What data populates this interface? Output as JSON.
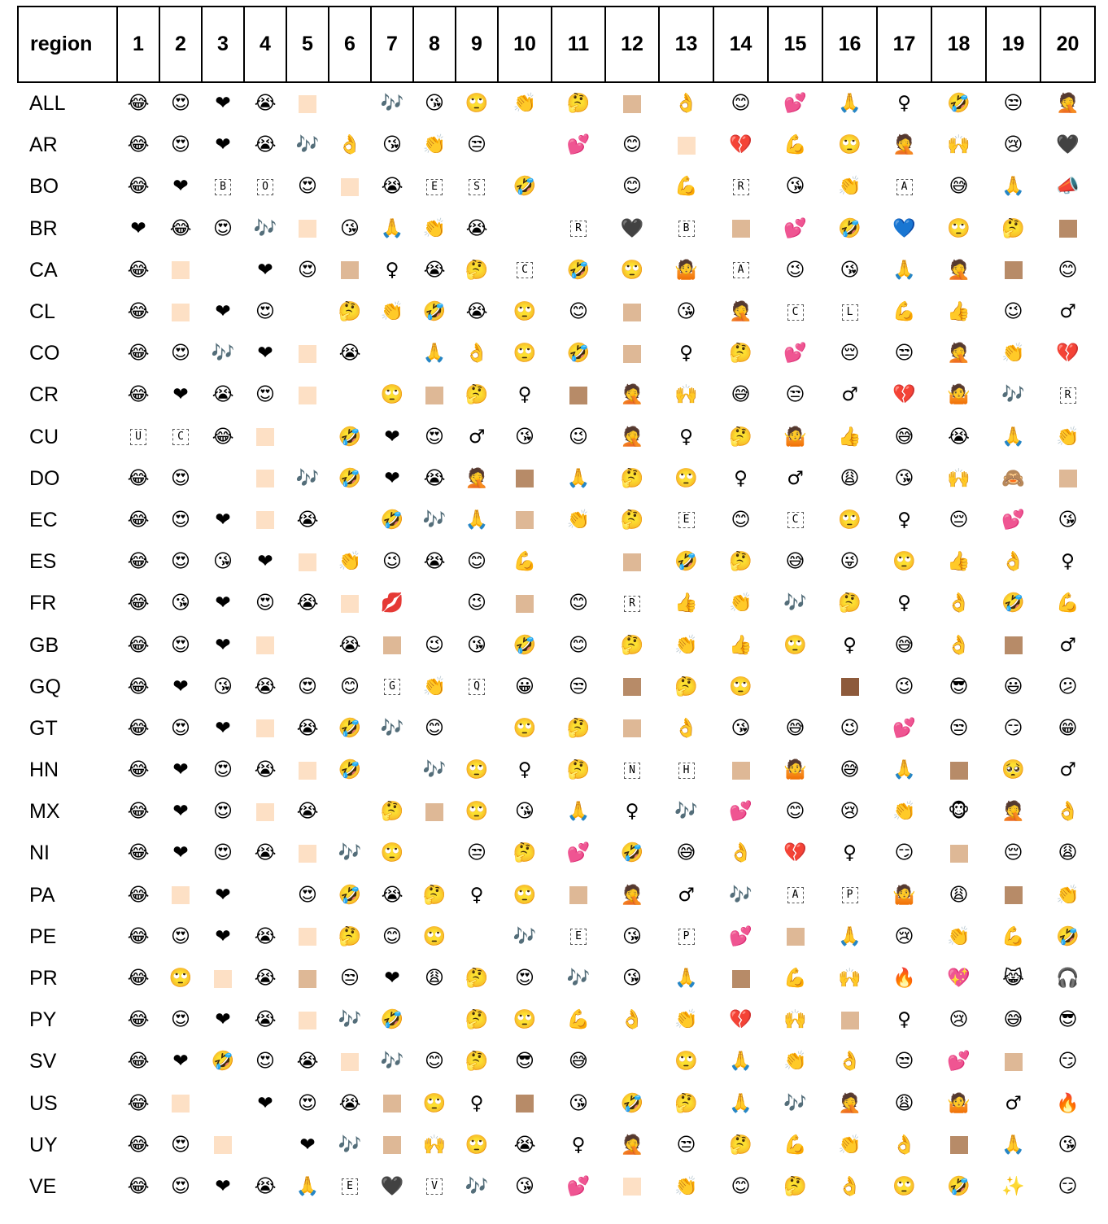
{
  "header": [
    "region",
    "1",
    "2",
    "3",
    "4",
    "5",
    "6",
    "7",
    "8",
    "9",
    "10",
    "11",
    "12",
    "13",
    "14",
    "15",
    "16",
    "17",
    "18",
    "19",
    "20"
  ],
  "rows": [
    {
      "region": "ALL",
      "cells": [
        "😂",
        "😍",
        "❤",
        "😭",
        "[sw:#fde0c5]",
        "",
        "🎶",
        "😘",
        "🙄",
        "👏",
        "🤔",
        "[sw:#deb896]",
        "👌",
        "😊",
        "💕",
        "🙏",
        "♀",
        "🤣",
        "😒",
        "🤦"
      ]
    },
    {
      "region": "AR",
      "cells": [
        "😂",
        "😍",
        "❤",
        "😭",
        "🎶",
        "👌",
        "😘",
        "👏",
        "😒",
        "",
        "💕",
        "😊",
        "[sw:#fde0c5]",
        "💔",
        "💪",
        "🙄",
        "🤦",
        "🙌",
        "😢",
        "🖤"
      ]
    },
    {
      "region": "BO",
      "cells": [
        "😂",
        "❤",
        "[B]",
        "[O]",
        "😍",
        "[sw:#fde0c5]",
        "😭",
        "[E]",
        "[S]",
        "🤣",
        "",
        "😊",
        "💪",
        "[R]",
        "😘",
        "👏",
        "[A]",
        "😅",
        "🙏",
        "📣"
      ]
    },
    {
      "region": "BR",
      "cells": [
        "❤",
        "😂",
        "😍",
        "🎶",
        "[sw:#fde0c5]",
        "😘",
        "🙏",
        "👏",
        "😭",
        "",
        "[R]",
        "🖤",
        "[B]",
        "[sw:#deb896]",
        "💕",
        "🤣",
        "💙",
        "🙄",
        "🤔",
        "[sw:#b78b68]"
      ]
    },
    {
      "region": "CA",
      "cells": [
        "😂",
        "[sw:#fde0c5]",
        "",
        "❤",
        "😍",
        "[sw:#deb896]",
        "♀",
        "😭",
        "🤔",
        "[C]",
        "🤣",
        "🙄",
        "🤷",
        "[A]",
        "😉",
        "😘",
        "🙏",
        "🤦",
        "[sw:#b78b68]",
        "😊"
      ]
    },
    {
      "region": "CL",
      "cells": [
        "😂",
        "[sw:#fde0c5]",
        "❤",
        "😍",
        "",
        "🤔",
        "👏",
        "🤣",
        "😭",
        "🙄",
        "😊",
        "[sw:#deb896]",
        "😘",
        "🤦",
        "[C]",
        "[L]",
        "💪",
        "👍",
        "😉",
        "♂"
      ]
    },
    {
      "region": "CO",
      "cells": [
        "😂",
        "😍",
        "🎶",
        "❤",
        "[sw:#fde0c5]",
        "😭",
        "",
        "🙏",
        "👌",
        "🙄",
        "🤣",
        "[sw:#deb896]",
        "♀",
        "🤔",
        "💕",
        "😔",
        "😒",
        "🤦",
        "👏",
        "💔"
      ]
    },
    {
      "region": "CR",
      "cells": [
        "😂",
        "❤",
        "😭",
        "😍",
        "[sw:#fde0c5]",
        "",
        "🙄",
        "[sw:#deb896]",
        "🤔",
        "♀",
        "[sw:#b78b68]",
        "🤦",
        "🙌",
        "😅",
        "😒",
        "♂",
        "💔",
        "🤷",
        "🎶",
        "[R]"
      ]
    },
    {
      "region": "CU",
      "cells": [
        "[U]",
        "[C]",
        "😂",
        "[sw:#fde0c5]",
        "",
        "🤣",
        "❤",
        "😍",
        "♂",
        "😘",
        "😉",
        "🤦",
        "♀",
        "🤔",
        "🤷",
        "👍",
        "😅",
        "😭",
        "🙏",
        "👏"
      ]
    },
    {
      "region": "DO",
      "cells": [
        "😂",
        "😍",
        "",
        "[sw:#fde0c5]",
        "🎶",
        "🤣",
        "❤",
        "😭",
        "🤦",
        "[sw:#b78b68]",
        "🙏",
        "🤔",
        "🙄",
        "♀",
        "♂",
        "😩",
        "😘",
        "🙌",
        "🙈",
        "[sw:#deb896]"
      ]
    },
    {
      "region": "EC",
      "cells": [
        "😂",
        "😍",
        "❤",
        "[sw:#fde0c5]",
        "😭",
        "",
        "🤣",
        "🎶",
        "🙏",
        "[sw:#deb896]",
        "👏",
        "🤔",
        "[E]",
        "😊",
        "[C]",
        "🙄",
        "♀",
        "😔",
        "💕",
        "😘"
      ]
    },
    {
      "region": "ES",
      "cells": [
        "😂",
        "😍",
        "😘",
        "❤",
        "[sw:#fde0c5]",
        "👏",
        "😉",
        "😭",
        "😊",
        "💪",
        "",
        "[sw:#deb896]",
        "🤣",
        "🤔",
        "😅",
        "😜",
        "🙄",
        "👍",
        "👌",
        "♀"
      ]
    },
    {
      "region": "FR",
      "cells": [
        "😂",
        "😘",
        "❤",
        "😍",
        "😭",
        "[sw:#fde0c5]",
        "💋",
        "",
        "😉",
        "[sw:#deb896]",
        "😊",
        "[R]",
        "👍",
        "👏",
        "🎶",
        "🤔",
        "♀",
        "👌",
        "🤣",
        "💪"
      ]
    },
    {
      "region": "GB",
      "cells": [
        "😂",
        "😍",
        "❤",
        "[sw:#fde0c5]",
        "",
        "😭",
        "[sw:#deb896]",
        "😉",
        "😘",
        "🤣",
        "😊",
        "🤔",
        "👏",
        "👍",
        "🙄",
        "♀",
        "😅",
        "👌",
        "[sw:#b78b68]",
        "♂"
      ]
    },
    {
      "region": "GQ",
      "cells": [
        "😂",
        "❤",
        "😘",
        "😭",
        "😍",
        "😊",
        "[G]",
        "👏",
        "[Q]",
        "😀",
        "😒",
        "[sw:#b78b68]",
        "🤔",
        "🙄",
        "",
        "[sw:#8d5a3b]",
        "😉",
        "😎",
        "😃",
        "😕"
      ]
    },
    {
      "region": "GT",
      "cells": [
        "😂",
        "😍",
        "❤",
        "[sw:#fde0c5]",
        "😭",
        "🤣",
        "🎶",
        "😊",
        "",
        "🙄",
        "🤔",
        "[sw:#deb896]",
        "👌",
        "😘",
        "😅",
        "😉",
        "💕",
        "😒",
        "😏",
        "😁"
      ]
    },
    {
      "region": "HN",
      "cells": [
        "😂",
        "❤",
        "😍",
        "😭",
        "[sw:#fde0c5]",
        "🤣",
        "",
        "🎶",
        "🙄",
        "♀",
        "🤔",
        "[N]",
        "[H]",
        "[sw:#deb896]",
        "🤷",
        "😅",
        "🙏",
        "[sw:#b78b68]",
        "🥺",
        "♂"
      ]
    },
    {
      "region": "MX",
      "cells": [
        "😂",
        "❤",
        "😍",
        "[sw:#fde0c5]",
        "😭",
        "",
        "🤔",
        "[sw:#deb896]",
        "🙄",
        "😘",
        "🙏",
        "♀",
        "🎶",
        "💕",
        "😊",
        "😢",
        "👏",
        "🐵",
        "🤦",
        "👌"
      ]
    },
    {
      "region": "NI",
      "cells": [
        "😂",
        "❤",
        "😍",
        "😭",
        "[sw:#fde0c5]",
        "🎶",
        "🙄",
        "",
        "😒",
        "🤔",
        "💕",
        "🤣",
        "😅",
        "👌",
        "💔",
        "♀",
        "😏",
        "[sw:#deb896]",
        "😔",
        "😩"
      ]
    },
    {
      "region": "PA",
      "cells": [
        "😂",
        "[sw:#fde0c5]",
        "❤",
        "",
        "😍",
        "🤣",
        "😭",
        "🤔",
        "♀",
        "🙄",
        "[sw:#deb896]",
        "🤦",
        "♂",
        "🎶",
        "[A]",
        "[P]",
        "🤷",
        "😩",
        "[sw:#b78b68]",
        "👏"
      ]
    },
    {
      "region": "PE",
      "cells": [
        "😂",
        "😍",
        "❤",
        "😭",
        "[sw:#fde0c5]",
        "🤔",
        "😊",
        "🙄",
        "",
        "🎶",
        "[E]",
        "😘",
        "[P]",
        "💕",
        "[sw:#deb896]",
        "🙏",
        "😢",
        "👏",
        "💪",
        "🤣"
      ]
    },
    {
      "region": "PR",
      "cells": [
        "😂",
        "🙄",
        "[sw:#fde0c5]",
        "😭",
        "[sw:#deb896]",
        "😒",
        "❤",
        "😩",
        "🤔",
        "😍",
        "🎶",
        "😘",
        "🙏",
        "[sw:#b78b68]",
        "💪",
        "🙌",
        "🔥",
        "💖",
        "😹",
        "🎧"
      ]
    },
    {
      "region": "PY",
      "cells": [
        "😂",
        "😍",
        "❤",
        "😭",
        "[sw:#fde0c5]",
        "🎶",
        "🤣",
        "",
        "🤔",
        "🙄",
        "💪",
        "👌",
        "👏",
        "💔",
        "🙌",
        "[sw:#deb896]",
        "♀",
        "😢",
        "😅",
        "😎"
      ]
    },
    {
      "region": "SV",
      "cells": [
        "😂",
        "❤",
        "🤣",
        "😍",
        "😭",
        "[sw:#fde0c5]",
        "🎶",
        "😊",
        "🤔",
        "😎",
        "😅",
        "",
        "🙄",
        "🙏",
        "👏",
        "👌",
        "😒",
        "💕",
        "[sw:#deb896]",
        "😏"
      ]
    },
    {
      "region": "US",
      "cells": [
        "😂",
        "[sw:#fde0c5]",
        "",
        "❤",
        "😍",
        "😭",
        "[sw:#deb896]",
        "🙄",
        "♀",
        "[sw:#b78b68]",
        "😘",
        "🤣",
        "🤔",
        "🙏",
        "🎶",
        "🤦",
        "😩",
        "🤷",
        "♂",
        "🔥"
      ]
    },
    {
      "region": "UY",
      "cells": [
        "😂",
        "😍",
        "[sw:#fde0c5]",
        "",
        "❤",
        "🎶",
        "[sw:#deb896]",
        "🙌",
        "🙄",
        "😭",
        "♀",
        "🤦",
        "😒",
        "🤔",
        "💪",
        "👏",
        "👌",
        "[sw:#b78b68]",
        "🙏",
        "😘"
      ]
    },
    {
      "region": "VE",
      "cells": [
        "😂",
        "😍",
        "❤",
        "😭",
        "🙏",
        "[E]",
        "🖤",
        "[V]",
        "🎶",
        "😘",
        "💕",
        "[sw:#fde0c5]",
        "👏",
        "😊",
        "🤔",
        "👌",
        "🙄",
        "🤣",
        "✨",
        "😏"
      ]
    }
  ]
}
